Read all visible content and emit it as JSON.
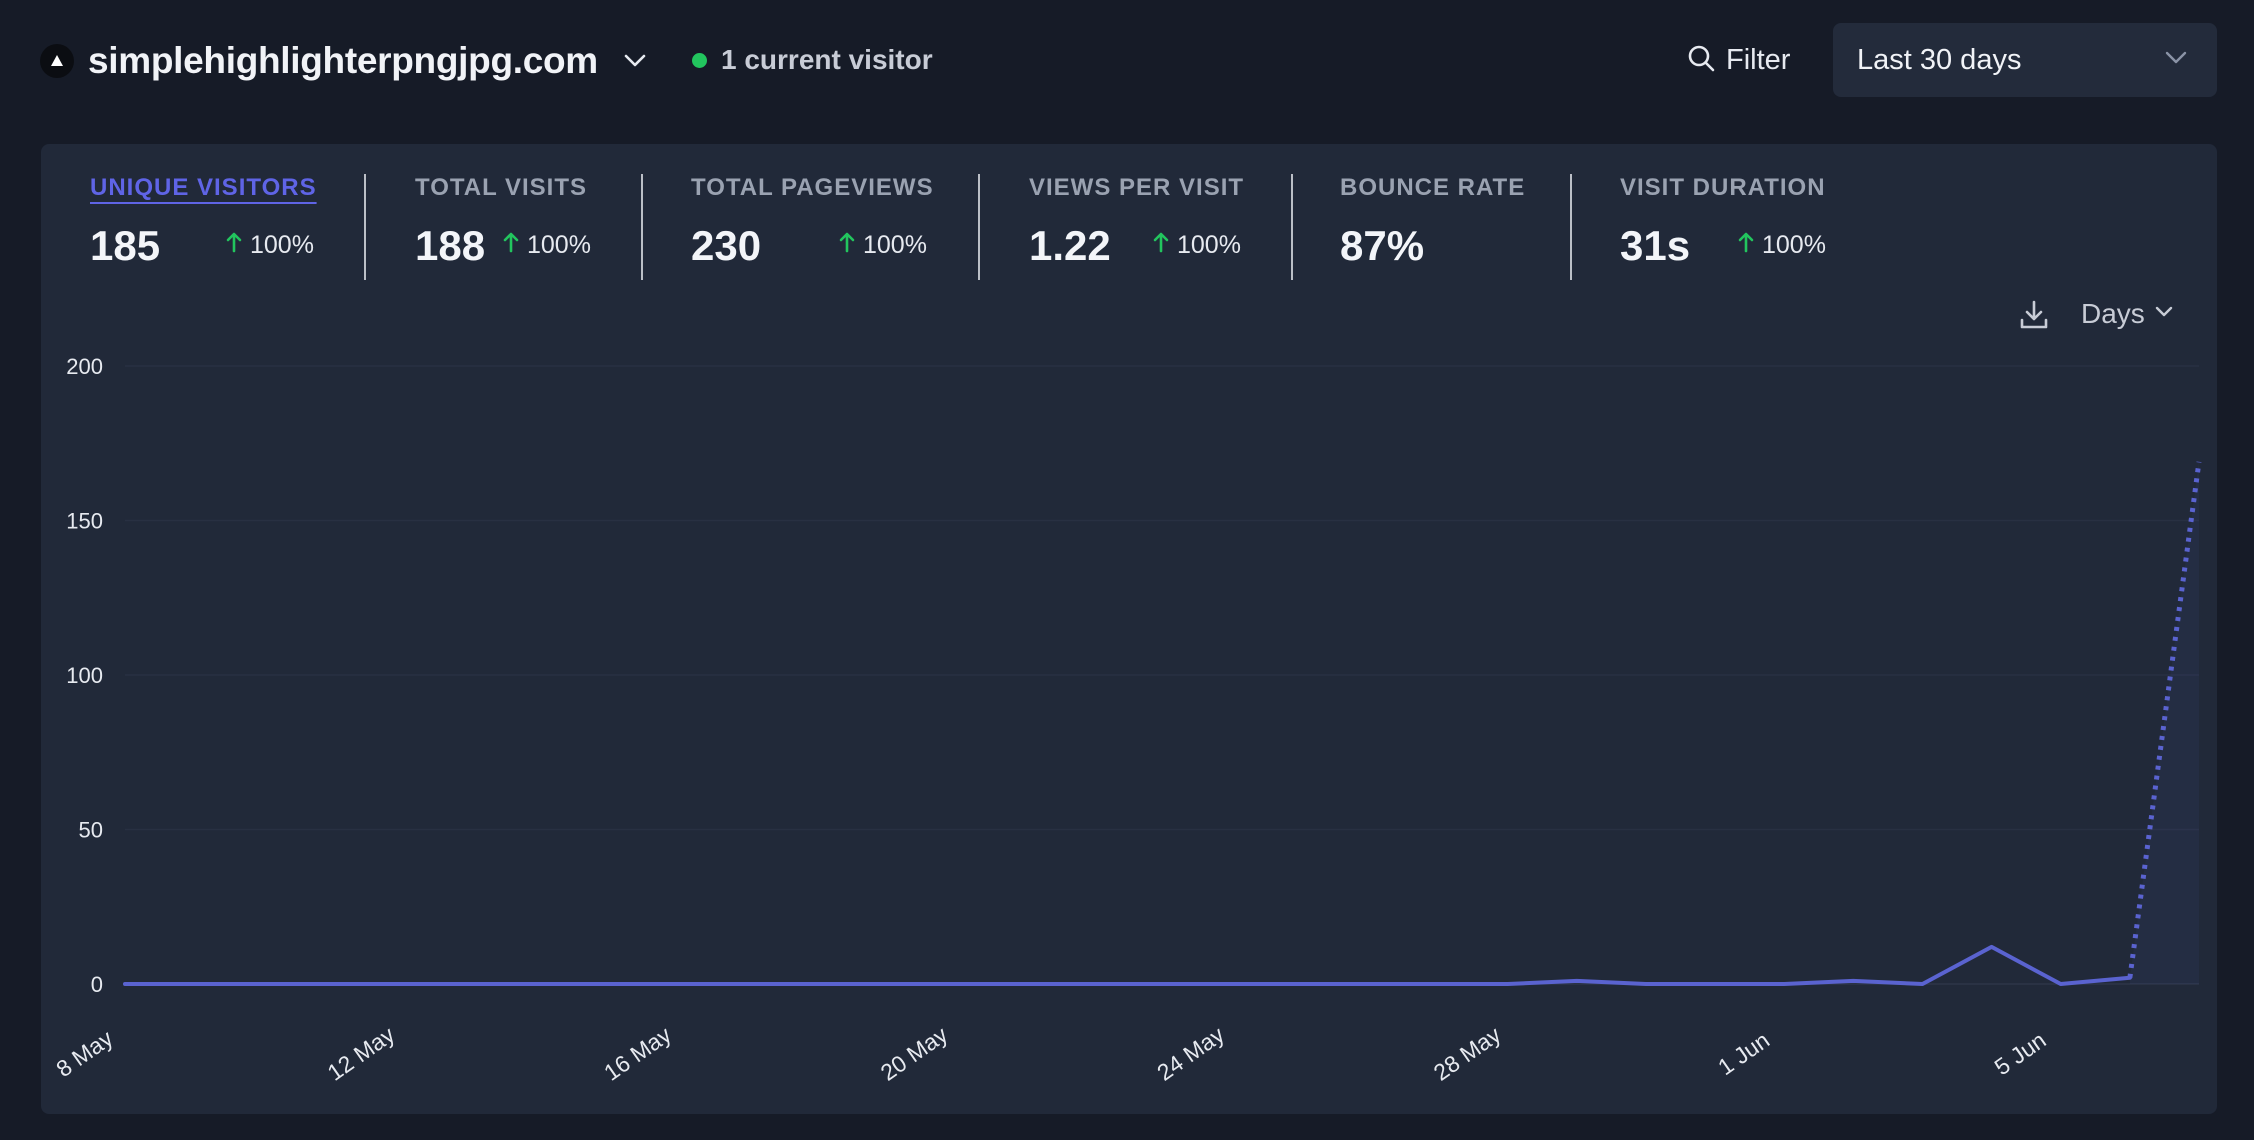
{
  "header": {
    "site_name": "simplehighlighterpngjpg.com",
    "current_visitors": "1 current visitor",
    "filter_label": "Filter",
    "period_label": "Last 30 days"
  },
  "metrics": [
    {
      "label": "UNIQUE VISITORS",
      "value": "185",
      "change": "100%",
      "active": true
    },
    {
      "label": "TOTAL VISITS",
      "value": "188",
      "change": "100%"
    },
    {
      "label": "TOTAL PAGEVIEWS",
      "value": "230",
      "change": "100%"
    },
    {
      "label": "VIEWS PER VISIT",
      "value": "1.22",
      "change": "100%"
    },
    {
      "label": "BOUNCE RATE",
      "value": "87%",
      "change": ""
    },
    {
      "label": "VISIT DURATION",
      "value": "31s",
      "change": "100%"
    }
  ],
  "chart_controls": {
    "interval_label": "Days"
  },
  "colors": {
    "accent": "#5f64e6",
    "line": "#5a63d0",
    "positive": "#22c55e",
    "live": "#22c55e"
  },
  "chart_data": {
    "type": "line",
    "series": [
      {
        "values": [
          0,
          0,
          0,
          0,
          0,
          0,
          0,
          0,
          0,
          0,
          0,
          0,
          0,
          0,
          0,
          0,
          0,
          0,
          0,
          0,
          0,
          1,
          0,
          0,
          0,
          1,
          0,
          12,
          0,
          2,
          169
        ],
        "incomplete_last_point": true
      }
    ],
    "x": [
      "8 May",
      "9 May",
      "10 May",
      "11 May",
      "12 May",
      "13 May",
      "14 May",
      "15 May",
      "16 May",
      "17 May",
      "18 May",
      "19 May",
      "20 May",
      "21 May",
      "22 May",
      "23 May",
      "24 May",
      "25 May",
      "26 May",
      "27 May",
      "28 May",
      "29 May",
      "30 May",
      "31 May",
      "1 Jun",
      "2 Jun",
      "3 Jun",
      "4 Jun",
      "5 Jun",
      "6 Jun",
      "7 Jun"
    ],
    "x_tick_labels": [
      "8 May",
      "12 May",
      "16 May",
      "20 May",
      "24 May",
      "28 May",
      "1 Jun",
      "5 Jun"
    ],
    "y_ticks": [
      0,
      50,
      100,
      150,
      200
    ],
    "ylim": [
      0,
      200
    ],
    "grid": true
  }
}
